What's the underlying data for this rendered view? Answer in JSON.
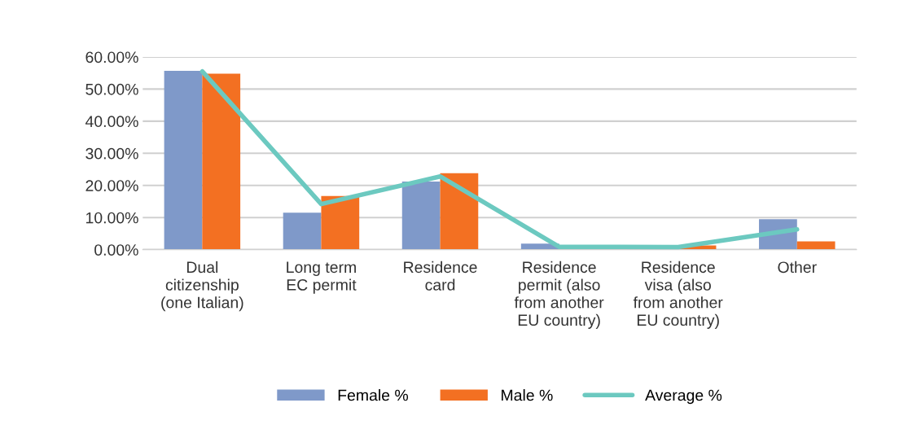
{
  "chart_data": {
    "type": "bar",
    "categories": [
      "Dual citizenship (one Italian)",
      "Long term EC permit",
      "Residence card",
      "Residence permit (also from another EU country)",
      "Residence visa (also from another EU country)",
      "Other"
    ],
    "series": [
      {
        "name": "Female %",
        "color": "#7f99c9",
        "values": [
          55.7,
          11.5,
          21.2,
          1.9,
          0,
          9.5
        ]
      },
      {
        "name": "Male %",
        "color": "#f37022",
        "values": [
          54.8,
          16.7,
          23.8,
          0,
          1.3,
          2.6
        ]
      },
      {
        "name": "Average %",
        "type": "line",
        "color": "#6cc9c0",
        "values": [
          55.5,
          14.2,
          22.8,
          0.9,
          0.8,
          6.3
        ]
      }
    ],
    "ylim": [
      0,
      60
    ],
    "yticks": [
      {
        "value": 0,
        "label": "0.00%"
      },
      {
        "value": 10,
        "label": "10.00%"
      },
      {
        "value": 20,
        "label": "20.00%"
      },
      {
        "value": 30,
        "label": "30.00%"
      },
      {
        "value": 40,
        "label": "40.00%"
      },
      {
        "value": 50,
        "label": "50.00%"
      },
      {
        "value": 60,
        "label": "60.00%"
      }
    ],
    "grid": "y",
    "legend": "bottom"
  }
}
